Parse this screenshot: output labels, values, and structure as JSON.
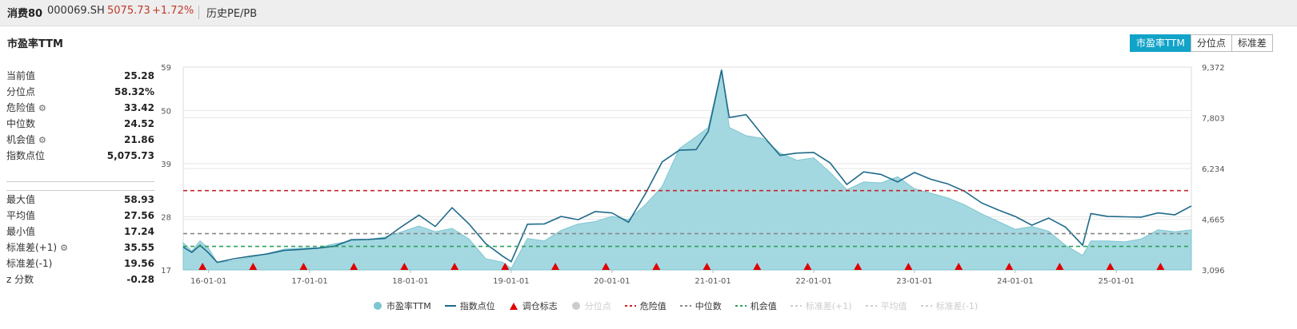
{
  "header": {
    "index_name": "消费80",
    "index_code": "000069.SH",
    "price": "5075.73",
    "change": "+1.72%",
    "history_link": "历史PE/PB"
  },
  "section_title": "市盈率TTM",
  "tabs": [
    {
      "label": "市盈率TTM",
      "active": true
    },
    {
      "label": "分位点",
      "active": false
    },
    {
      "label": "标准差",
      "active": false
    }
  ],
  "stats_top": [
    {
      "label": "当前值",
      "value": "25.28",
      "gear": false
    },
    {
      "label": "分位点",
      "value": "58.32%",
      "gear": false
    },
    {
      "label": "危险值",
      "value": "33.42",
      "gear": true
    },
    {
      "label": "中位数",
      "value": "24.52",
      "gear": false
    },
    {
      "label": "机会值",
      "value": "21.86",
      "gear": true
    },
    {
      "label": "指数点位",
      "value": "5,075.73",
      "gear": false
    }
  ],
  "stats_bottom": [
    {
      "label": "最大值",
      "value": "58.93",
      "gear": false
    },
    {
      "label": "平均值",
      "value": "27.56",
      "gear": false
    },
    {
      "label": "最小值",
      "value": "17.24",
      "gear": false
    },
    {
      "label": "标准差(+1)",
      "value": "35.55",
      "gear": true
    },
    {
      "label": "标准差(-1)",
      "value": "19.56",
      "gear": false
    },
    {
      "label": "z 分数",
      "value": "-0.28",
      "gear": false
    }
  ],
  "colors": {
    "pe_fill": "#9fd6df",
    "pe_stroke": "#7cc6d2",
    "index_line": "#1f6a8a",
    "danger": "#c1272d",
    "median": "#888888",
    "opportunity": "#2ea05a",
    "marker": "#e00000",
    "accent": "#11a3c8"
  },
  "chart_data": {
    "type": "area",
    "left_axis": {
      "ticks": [
        "59",
        "50",
        "39",
        "28",
        "17"
      ],
      "range": [
        17,
        59
      ]
    },
    "right_axis": {
      "ticks": [
        "9,372",
        "7,803",
        "6,234",
        "4,665",
        "3,096"
      ],
      "range": [
        3096,
        9372
      ]
    },
    "x_ticks": [
      "16-01-01",
      "17-01-01",
      "18-01-01",
      "19-01-01",
      "20-01-01",
      "21-01-01",
      "22-01-01",
      "23-01-01",
      "24-01-01",
      "25-01-01"
    ],
    "x_range": [
      "2015-10-01",
      "2025-09-30"
    ],
    "grid": true,
    "reference_lines": {
      "danger": 33.42,
      "median": 24.52,
      "opportunity": 21.86
    },
    "series": [
      {
        "name": "市盈率TTM",
        "axis": "left",
        "points": [
          [
            "2015-10-01",
            22.6
          ],
          [
            "2015-11-01",
            20.9
          ],
          [
            "2015-12-01",
            23.0
          ],
          [
            "2016-01-01",
            21.5
          ],
          [
            "2016-02-01",
            18.5
          ],
          [
            "2016-04-01",
            18.9
          ],
          [
            "2016-06-01",
            19.6
          ],
          [
            "2016-08-01",
            20.4
          ],
          [
            "2016-10-01",
            21.3
          ],
          [
            "2016-12-01",
            21.5
          ],
          [
            "2017-02-01",
            21.6
          ],
          [
            "2017-04-01",
            22.4
          ],
          [
            "2017-06-01",
            23.0
          ],
          [
            "2017-08-01",
            23.3
          ],
          [
            "2017-10-01",
            23.8
          ],
          [
            "2017-12-01",
            24.9
          ],
          [
            "2018-02-01",
            26.1
          ],
          [
            "2018-04-01",
            24.9
          ],
          [
            "2018-06-01",
            25.6
          ],
          [
            "2018-08-01",
            23.4
          ],
          [
            "2018-10-01",
            19.3
          ],
          [
            "2018-12-01",
            18.6
          ],
          [
            "2019-01-01",
            17.3
          ],
          [
            "2019-03-01",
            23.5
          ],
          [
            "2019-05-01",
            23.0
          ],
          [
            "2019-07-01",
            25.2
          ],
          [
            "2019-09-01",
            26.5
          ],
          [
            "2019-11-01",
            27.0
          ],
          [
            "2020-01-01",
            28.1
          ],
          [
            "2020-03-01",
            27.4
          ],
          [
            "2020-05-01",
            30.5
          ],
          [
            "2020-07-01",
            34.3
          ],
          [
            "2020-09-01",
            42.1
          ],
          [
            "2020-11-01",
            44.6
          ],
          [
            "2020-12-15",
            46.5
          ],
          [
            "2021-02-01",
            58.6
          ],
          [
            "2021-03-01",
            46.5
          ],
          [
            "2021-05-01",
            44.8
          ],
          [
            "2021-07-01",
            44.2
          ],
          [
            "2021-09-01",
            41.2
          ],
          [
            "2021-11-01",
            39.7
          ],
          [
            "2022-01-01",
            40.2
          ],
          [
            "2022-03-01",
            37.2
          ],
          [
            "2022-05-01",
            33.6
          ],
          [
            "2022-07-01",
            35.2
          ],
          [
            "2022-09-01",
            35.0
          ],
          [
            "2022-11-01",
            36.3
          ],
          [
            "2023-01-01",
            33.8
          ],
          [
            "2023-03-01",
            32.9
          ],
          [
            "2023-05-01",
            31.9
          ],
          [
            "2023-07-01",
            30.5
          ],
          [
            "2023-09-01",
            28.6
          ],
          [
            "2023-11-01",
            27.0
          ],
          [
            "2024-01-01",
            25.4
          ],
          [
            "2024-03-01",
            26.0
          ],
          [
            "2024-05-01",
            25.0
          ],
          [
            "2024-07-01",
            22.1
          ],
          [
            "2024-09-01",
            20.0
          ],
          [
            "2024-10-01",
            23.0
          ],
          [
            "2024-12-01",
            23.0
          ],
          [
            "2025-02-01",
            22.8
          ],
          [
            "2025-04-01",
            23.4
          ],
          [
            "2025-06-01",
            25.3
          ],
          [
            "2025-08-01",
            24.9
          ],
          [
            "2025-09-30",
            25.3
          ]
        ]
      },
      {
        "name": "指数点位",
        "axis": "right",
        "points": [
          [
            "2015-10-01",
            3800
          ],
          [
            "2015-11-01",
            3640
          ],
          [
            "2015-12-01",
            3860
          ],
          [
            "2016-01-01",
            3620
          ],
          [
            "2016-02-01",
            3330
          ],
          [
            "2016-04-01",
            3440
          ],
          [
            "2016-06-01",
            3520
          ],
          [
            "2016-08-01",
            3590
          ],
          [
            "2016-10-01",
            3700
          ],
          [
            "2016-12-01",
            3730
          ],
          [
            "2017-02-01",
            3770
          ],
          [
            "2017-04-01",
            3830
          ],
          [
            "2017-06-01",
            4030
          ],
          [
            "2017-08-01",
            4040
          ],
          [
            "2017-10-01",
            4070
          ],
          [
            "2017-12-01",
            4440
          ],
          [
            "2018-02-01",
            4790
          ],
          [
            "2018-04-01",
            4440
          ],
          [
            "2018-06-01",
            5020
          ],
          [
            "2018-08-01",
            4520
          ],
          [
            "2018-10-01",
            3910
          ],
          [
            "2018-12-01",
            3520
          ],
          [
            "2019-01-01",
            3350
          ],
          [
            "2019-03-01",
            4510
          ],
          [
            "2019-05-01",
            4520
          ],
          [
            "2019-07-01",
            4750
          ],
          [
            "2019-09-01",
            4650
          ],
          [
            "2019-11-01",
            4900
          ],
          [
            "2020-01-01",
            4860
          ],
          [
            "2020-03-01",
            4570
          ],
          [
            "2020-05-01",
            5450
          ],
          [
            "2020-07-01",
            6440
          ],
          [
            "2020-09-01",
            6800
          ],
          [
            "2020-11-01",
            6820
          ],
          [
            "2020-12-15",
            7380
          ],
          [
            "2021-02-01",
            9280
          ],
          [
            "2021-03-01",
            7810
          ],
          [
            "2021-05-01",
            7900
          ],
          [
            "2021-07-01",
            7250
          ],
          [
            "2021-09-01",
            6640
          ],
          [
            "2021-11-01",
            6710
          ],
          [
            "2022-01-01",
            6730
          ],
          [
            "2022-03-01",
            6410
          ],
          [
            "2022-05-01",
            5740
          ],
          [
            "2022-07-01",
            6130
          ],
          [
            "2022-09-01",
            6050
          ],
          [
            "2022-11-01",
            5820
          ],
          [
            "2023-01-01",
            6110
          ],
          [
            "2023-03-01",
            5900
          ],
          [
            "2023-05-01",
            5760
          ],
          [
            "2023-07-01",
            5530
          ],
          [
            "2023-09-01",
            5170
          ],
          [
            "2023-11-01",
            4950
          ],
          [
            "2024-01-01",
            4750
          ],
          [
            "2024-03-01",
            4480
          ],
          [
            "2024-05-01",
            4700
          ],
          [
            "2024-07-01",
            4420
          ],
          [
            "2024-09-01",
            3860
          ],
          [
            "2024-10-01",
            4840
          ],
          [
            "2024-12-01",
            4750
          ],
          [
            "2025-02-01",
            4740
          ],
          [
            "2025-04-01",
            4730
          ],
          [
            "2025-06-01",
            4860
          ],
          [
            "2025-08-01",
            4800
          ],
          [
            "2025-09-30",
            5075
          ]
        ]
      }
    ],
    "markers": {
      "name": "调仓标志",
      "dates": [
        "2015-12-10",
        "2016-06-10",
        "2016-12-10",
        "2017-06-10",
        "2017-12-10",
        "2018-06-10",
        "2018-12-10",
        "2019-06-10",
        "2019-12-10",
        "2020-06-10",
        "2020-12-10",
        "2021-06-10",
        "2021-12-10",
        "2022-06-10",
        "2022-12-10",
        "2023-06-10",
        "2023-12-10",
        "2024-06-10",
        "2024-12-10",
        "2025-06-10"
      ]
    }
  },
  "legend": [
    {
      "label": "市盈率TTM",
      "kind": "dot",
      "color": "#7cc6d2",
      "on": true
    },
    {
      "label": "指数点位",
      "kind": "line",
      "color": "#1f6a8a",
      "on": true
    },
    {
      "label": "调仓标志",
      "kind": "triangle",
      "color": "#e00000",
      "on": true
    },
    {
      "label": "分位点",
      "kind": "dot",
      "color": "#cccccc",
      "on": false
    },
    {
      "label": "危险值",
      "kind": "dash",
      "color": "#c1272d",
      "on": true
    },
    {
      "label": "中位数",
      "kind": "dash",
      "color": "#888888",
      "on": true
    },
    {
      "label": "机会值",
      "kind": "dash",
      "color": "#2ea05a",
      "on": true
    },
    {
      "label": "标准差(+1)",
      "kind": "dash",
      "color": "#cccccc",
      "on": false
    },
    {
      "label": "平均值",
      "kind": "dash",
      "color": "#cccccc",
      "on": false
    },
    {
      "label": "标准差(-1)",
      "kind": "dash",
      "color": "#cccccc",
      "on": false
    }
  ]
}
